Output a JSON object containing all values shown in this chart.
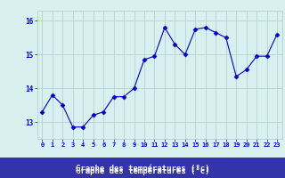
{
  "hours": [
    0,
    1,
    2,
    3,
    4,
    5,
    6,
    7,
    8,
    9,
    10,
    11,
    12,
    13,
    14,
    15,
    16,
    17,
    18,
    19,
    20,
    21,
    22,
    23
  ],
  "temps": [
    13.3,
    13.8,
    13.5,
    12.85,
    12.85,
    13.2,
    13.3,
    13.75,
    13.75,
    14.0,
    14.85,
    14.95,
    15.8,
    15.3,
    15.0,
    15.75,
    15.8,
    15.65,
    15.5,
    14.35,
    14.55,
    14.95,
    14.95,
    15.6
  ],
  "line_color": "#0000cc",
  "marker": "D",
  "marker_size": 2.5,
  "bg_color": "#d8f0f0",
  "grid_color": "#b0cccc",
  "xlabel": "Graphe des températures (°c)",
  "xlabel_bg": "#3333aa",
  "tick_color": "#0000cc",
  "ylim": [
    12.5,
    16.3
  ],
  "yticks": [
    13,
    14,
    15,
    16
  ],
  "xticks": [
    0,
    1,
    2,
    3,
    4,
    5,
    6,
    7,
    8,
    9,
    10,
    11,
    12,
    13,
    14,
    15,
    16,
    17,
    18,
    19,
    20,
    21,
    22,
    23
  ]
}
